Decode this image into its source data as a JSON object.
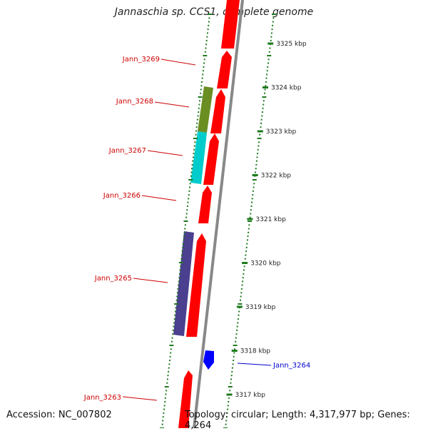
{
  "title": "Jannaschia sp. CCS1, complete genome",
  "accession": "Accession: NC_007802",
  "topology": "Topology: circular; Length: 4,317,977 bp; Genes: 4,264",
  "colors": {
    "forward_gene": "#ff0000",
    "gene_3268": "#6b8e23",
    "gene_3267": "#00cccc",
    "gene_3265": "#4b3f8f",
    "gene_3264": "#0000ff",
    "label_red": "#cc0000",
    "label_blue": "#0000cc",
    "backbone": "#888888",
    "ticks": "#1e7a1e"
  },
  "ticks": [
    {
      "label": "3325 kbp",
      "kbp": 3325
    },
    {
      "label": "3324 kbp",
      "kbp": 3324
    },
    {
      "label": "3323 kbp",
      "kbp": 3323
    },
    {
      "label": "3322 kbp",
      "kbp": 3322
    },
    {
      "label": "3321 kbp",
      "kbp": 3321
    },
    {
      "label": "3320 kbp",
      "kbp": 3320
    },
    {
      "label": "3319 kbp",
      "kbp": 3319
    },
    {
      "label": "3318 kbp",
      "kbp": 3318
    },
    {
      "label": "3317 kbp",
      "kbp": 3317
    }
  ],
  "gene_labels": [
    {
      "text": "Jann_3269",
      "color": "#cc0000"
    },
    {
      "text": "Jann_3268",
      "color": "#cc0000"
    },
    {
      "text": "Jann_3267",
      "color": "#cc0000"
    },
    {
      "text": "Jann_3266",
      "color": "#cc0000"
    },
    {
      "text": "Jann_3265",
      "color": "#cc0000"
    },
    {
      "text": "Jann_3264",
      "color": "#0000cc"
    },
    {
      "text": "Jann_3263",
      "color": "#cc0000"
    }
  ]
}
